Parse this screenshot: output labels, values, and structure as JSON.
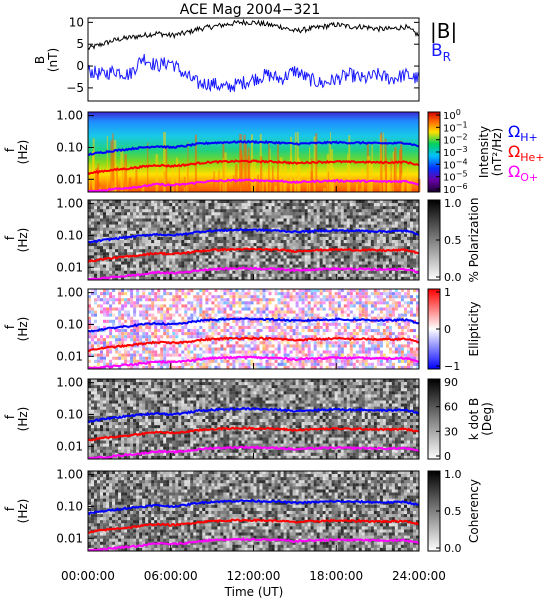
{
  "title": "ACE Mag 2004−321",
  "colors": {
    "btot": "#000000",
    "br": "#1a1aff",
    "h_plus": "#0000ff",
    "he_plus": "#ff0000",
    "o_plus": "#ff00ff"
  },
  "legend_b": {
    "btot_label": "|B|",
    "br_main": "B",
    "br_sub": "R"
  },
  "legend_omega": [
    {
      "symbol": "Ω",
      "sub": "H+",
      "color": "#0000ff"
    },
    {
      "symbol": "Ω",
      "sub": "He+",
      "color": "#ff0000"
    },
    {
      "symbol": "Ω",
      "sub": "O+",
      "color": "#ff00ff"
    }
  ],
  "x_axis": {
    "label": "Time (UT)",
    "ticks": [
      "00:00:00",
      "06:00:00",
      "12:00:00",
      "18:00:00",
      "24:00:00"
    ],
    "range_hours": [
      0,
      24
    ]
  },
  "chart_data": [
    {
      "type": "line",
      "panel": "B",
      "ylabel": "B",
      "yunit": "(nT)",
      "ylim": [
        -8,
        11
      ],
      "yticks": [
        "10",
        "5",
        "0",
        "−5"
      ],
      "ytick_values": [
        10,
        5,
        0,
        -5
      ],
      "series": [
        {
          "name": "|B|",
          "x_hours": [
            0,
            1,
            2,
            3,
            4,
            5,
            6,
            7,
            8,
            9,
            10,
            11,
            12,
            13,
            14,
            15,
            16,
            17,
            18,
            19,
            20,
            21,
            22,
            23,
            24
          ],
          "values": [
            4,
            5,
            6,
            6.5,
            7,
            7.5,
            7,
            7.5,
            8.5,
            9,
            9.5,
            10,
            10,
            9.5,
            9,
            8,
            8.5,
            9,
            9.5,
            9,
            9,
            8.5,
            8.5,
            9,
            7
          ]
        },
        {
          "name": "B_R",
          "x_hours": [
            0,
            1,
            2,
            3,
            4,
            5,
            6,
            7,
            8,
            9,
            10,
            11,
            12,
            13,
            14,
            15,
            16,
            17,
            18,
            19,
            20,
            21,
            22,
            23,
            24
          ],
          "values": [
            -1,
            -2,
            -1,
            -2,
            2,
            0,
            1,
            -2,
            -4,
            -4,
            -5,
            -4,
            -3,
            -2,
            -3,
            -1,
            -3,
            -4,
            -3,
            -2,
            -3,
            -2,
            -3,
            -2,
            -3
          ]
        }
      ]
    },
    {
      "type": "heatmap",
      "panel": "Intensity",
      "ylabel": "f",
      "yunit": "(Hz)",
      "yticks": [
        "1.00",
        "0.10",
        "0.01"
      ],
      "ylim_log": [
        0.004,
        1.3
      ],
      "colorbar": {
        "label": "Intensity",
        "unit": "(nT²/Hz)",
        "scale": "log",
        "ticks": [
          {
            "base": "10",
            "exp": "0"
          },
          {
            "base": "10",
            "exp": "−1"
          },
          {
            "base": "10",
            "exp": "−2"
          },
          {
            "base": "10",
            "exp": "−3"
          },
          {
            "base": "10",
            "exp": "−4"
          },
          {
            "base": "10",
            "exp": "−5"
          },
          {
            "base": "10",
            "exp": "−6"
          }
        ]
      }
    },
    {
      "type": "heatmap",
      "panel": "Polarization",
      "ylabel": "f",
      "yunit": "(Hz)",
      "yticks": [
        "1.00",
        "0.10",
        "0.01"
      ],
      "colorbar": {
        "label": "% Polarization",
        "range": [
          0,
          1
        ],
        "ticks": [
          "1.0",
          "0.5",
          "0.0"
        ]
      }
    },
    {
      "type": "heatmap",
      "panel": "Ellipticity",
      "ylabel": "f",
      "yunit": "(Hz)",
      "yticks": [
        "1.00",
        "0.10",
        "0.01"
      ],
      "colorbar": {
        "label": "Ellipticity",
        "range": [
          -1,
          1
        ],
        "ticks": [
          "1",
          "0",
          "−1"
        ]
      }
    },
    {
      "type": "heatmap",
      "panel": "k dot B",
      "ylabel": "f",
      "yunit": "(Hz)",
      "yticks": [
        "1.00",
        "0.10",
        "0.01"
      ],
      "colorbar": {
        "label": "k dot B",
        "unit": "(Deg)",
        "range": [
          0,
          90
        ],
        "ticks": [
          "90",
          "60",
          "30",
          "0"
        ]
      }
    },
    {
      "type": "heatmap",
      "panel": "Coherency",
      "ylabel": "f",
      "yunit": "(Hz)",
      "yticks": [
        "1.00",
        "0.10",
        "0.01"
      ],
      "colorbar": {
        "label": "Coherency",
        "range": [
          0,
          1
        ],
        "ticks": [
          "1.0",
          "0.5",
          "0.0"
        ]
      }
    }
  ],
  "gyrofrequency_hz": {
    "x_hours": [
      0,
      1,
      2,
      3,
      4,
      5,
      6,
      7,
      8,
      9,
      10,
      11,
      12,
      13,
      14,
      15,
      16,
      17,
      18,
      19,
      20,
      21,
      22,
      23,
      24
    ],
    "H+": [
      0.06,
      0.07,
      0.08,
      0.09,
      0.1,
      0.11,
      0.1,
      0.11,
      0.13,
      0.14,
      0.145,
      0.15,
      0.15,
      0.145,
      0.14,
      0.13,
      0.135,
      0.14,
      0.145,
      0.14,
      0.14,
      0.135,
      0.135,
      0.14,
      0.11
    ],
    "He+": [
      0.015,
      0.018,
      0.02,
      0.022,
      0.025,
      0.028,
      0.026,
      0.028,
      0.032,
      0.035,
      0.036,
      0.037,
      0.037,
      0.036,
      0.035,
      0.032,
      0.034,
      0.035,
      0.036,
      0.035,
      0.035,
      0.034,
      0.034,
      0.035,
      0.028
    ],
    "O+": [
      0.004,
      0.0045,
      0.005,
      0.0055,
      0.006,
      0.007,
      0.0065,
      0.007,
      0.008,
      0.0088,
      0.009,
      0.0093,
      0.0093,
      0.009,
      0.0088,
      0.008,
      0.0085,
      0.0088,
      0.009,
      0.0088,
      0.0088,
      0.0085,
      0.0085,
      0.0088,
      0.007
    ]
  }
}
